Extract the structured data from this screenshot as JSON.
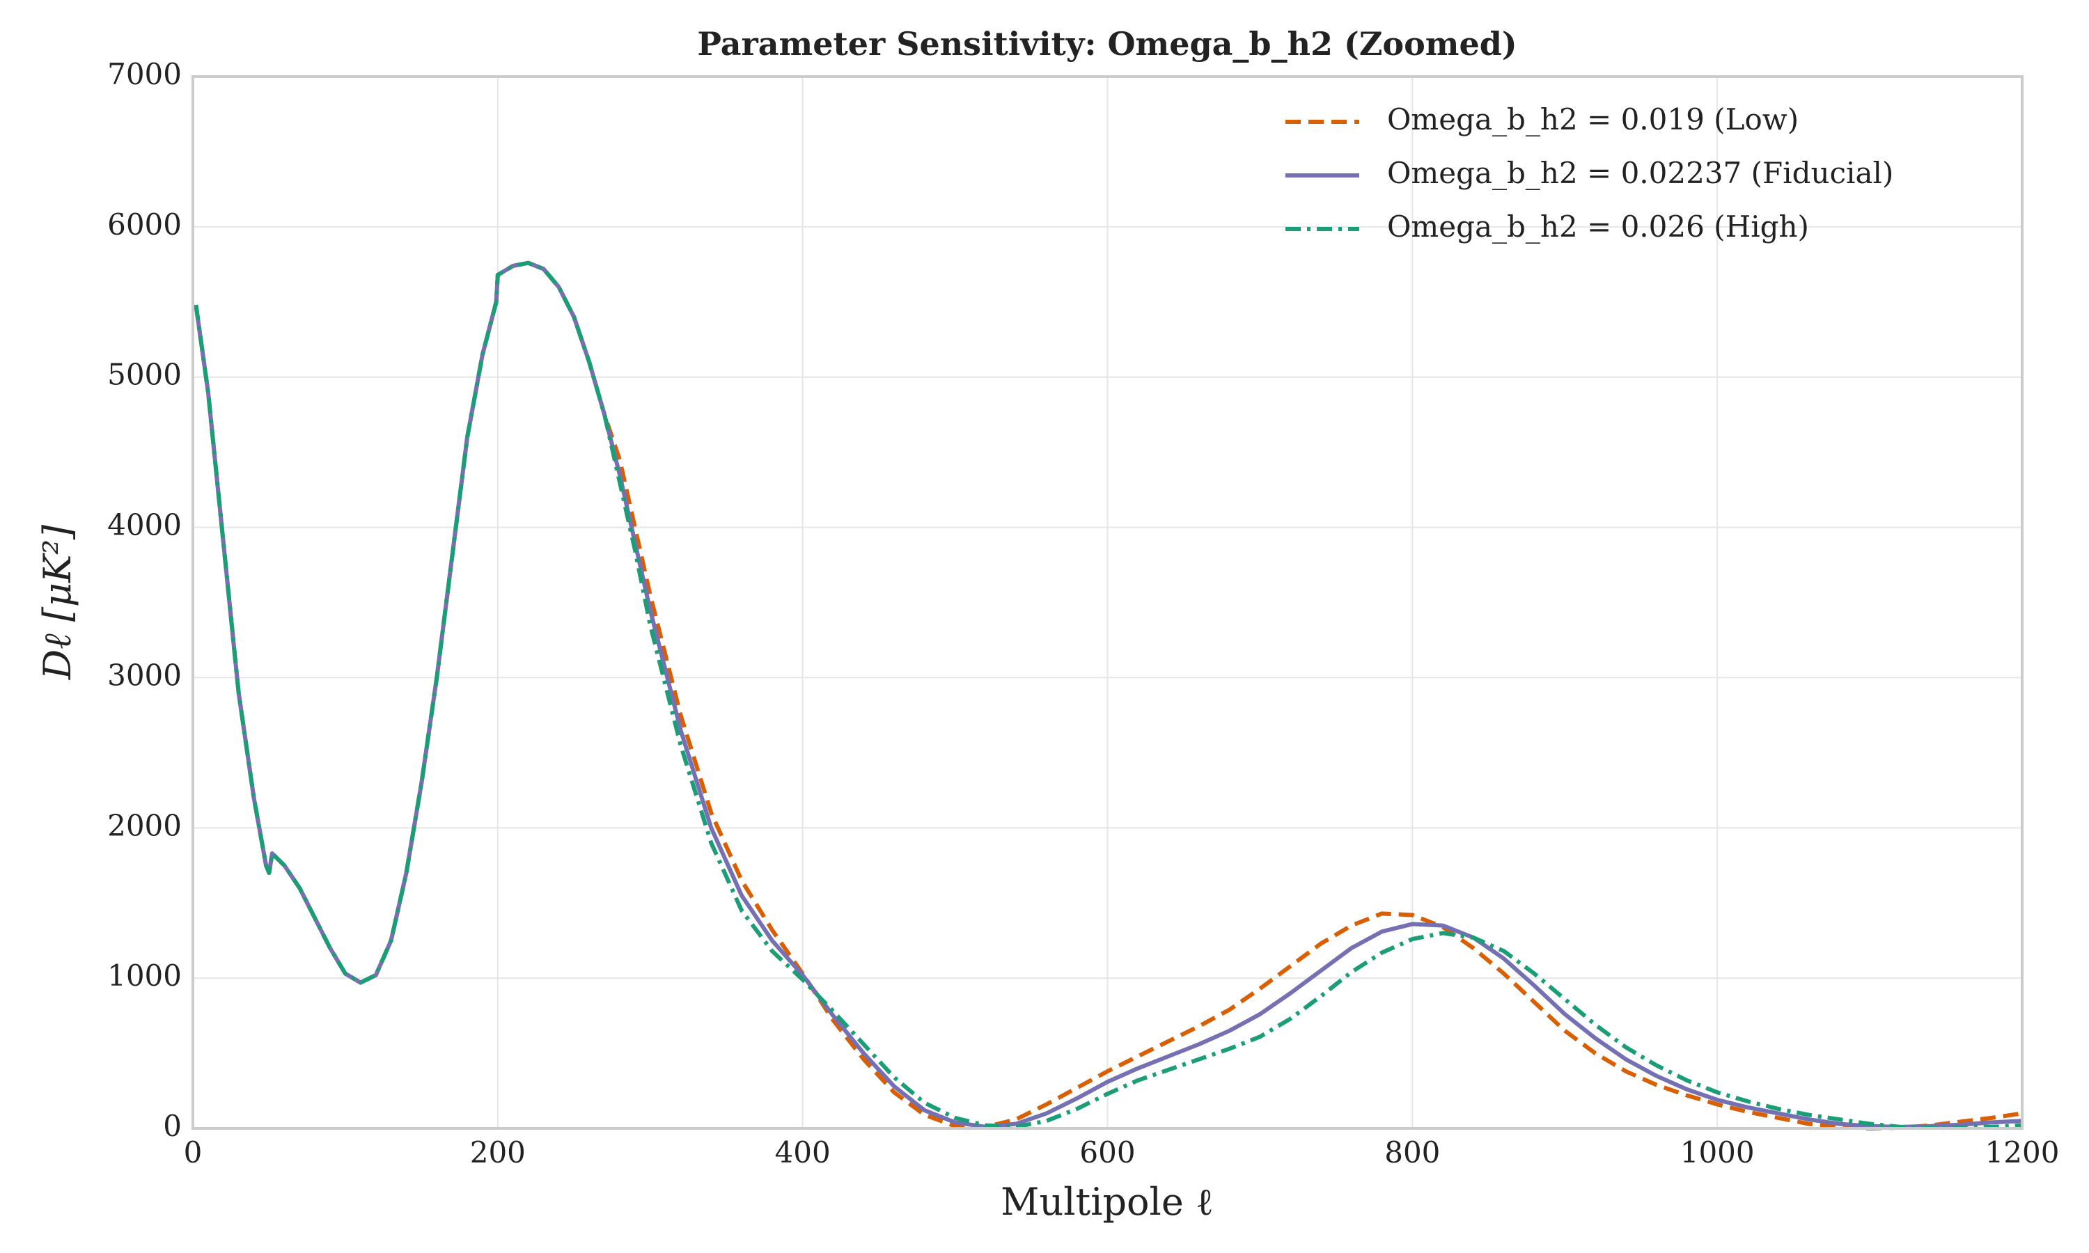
{
  "chart_data": {
    "type": "line",
    "title": "Parameter Sensitivity: Omega_b_h2 (Zoomed)",
    "xlabel": "Multipole ℓ",
    "ylabel": "Dℓ [μK²]",
    "x": [
      2,
      10,
      20,
      30,
      40,
      48,
      50,
      52,
      60,
      70,
      80,
      90,
      100,
      110,
      120,
      130,
      140,
      150,
      160,
      170,
      180,
      190,
      199,
      200,
      210,
      220,
      230,
      240,
      250,
      260,
      270,
      280,
      290,
      300,
      320,
      340,
      360,
      380,
      400,
      420,
      440,
      460,
      480,
      500,
      520,
      540,
      560,
      580,
      600,
      620,
      640,
      660,
      680,
      700,
      720,
      740,
      760,
      780,
      800,
      820,
      840,
      860,
      880,
      900,
      920,
      940,
      960,
      980,
      1000,
      1020,
      1040,
      1060,
      1080,
      1100,
      1120,
      1140,
      1160,
      1180,
      1200
    ],
    "series": [
      {
        "name": "Omega_b_h2 = 0.019 (Low)",
        "color": "#d95f02",
        "style": "dashed",
        "values": [
          5480,
          4900,
          3900,
          2900,
          2200,
          1750,
          1700,
          1830,
          1750,
          1600,
          1400,
          1200,
          1030,
          970,
          1020,
          1250,
          1700,
          2300,
          3000,
          3800,
          4600,
          5150,
          5500,
          5680,
          5740,
          5760,
          5720,
          5600,
          5400,
          5100,
          4750,
          4450,
          4000,
          3550,
          2750,
          2100,
          1650,
          1320,
          1030,
          720,
          460,
          240,
          90,
          15,
          10,
          60,
          160,
          270,
          380,
          480,
          580,
          680,
          790,
          930,
          1080,
          1230,
          1350,
          1430,
          1420,
          1340,
          1200,
          1030,
          840,
          650,
          500,
          380,
          290,
          220,
          160,
          110,
          70,
          30,
          10,
          0,
          5,
          20,
          45,
          70,
          100
        ]
      },
      {
        "name": "Omega_b_h2 = 0.02237 (Fiducial)",
        "color": "#7570b3",
        "style": "solid",
        "values": [
          5480,
          4900,
          3900,
          2900,
          2200,
          1750,
          1700,
          1830,
          1750,
          1600,
          1400,
          1200,
          1030,
          970,
          1020,
          1250,
          1700,
          2300,
          3000,
          3800,
          4600,
          5150,
          5500,
          5680,
          5740,
          5760,
          5720,
          5600,
          5400,
          5100,
          4750,
          4350,
          3900,
          3450,
          2650,
          2000,
          1550,
          1250,
          1020,
          750,
          500,
          280,
          120,
          40,
          10,
          30,
          100,
          200,
          310,
          400,
          480,
          560,
          650,
          760,
          900,
          1050,
          1200,
          1310,
          1360,
          1350,
          1270,
          1130,
          950,
          760,
          600,
          460,
          350,
          260,
          190,
          140,
          100,
          60,
          30,
          15,
          10,
          15,
          25,
          40,
          50
        ]
      },
      {
        "name": "Omega_b_h2 = 0.026 (High)",
        "color": "#1b9e77",
        "style": "dashdot",
        "values": [
          5480,
          4900,
          3900,
          2900,
          2200,
          1750,
          1700,
          1830,
          1750,
          1600,
          1400,
          1200,
          1030,
          970,
          1020,
          1250,
          1700,
          2300,
          3000,
          3800,
          4600,
          5150,
          5500,
          5680,
          5740,
          5760,
          5720,
          5600,
          5400,
          5100,
          4750,
          4300,
          3850,
          3350,
          2550,
          1900,
          1450,
          1180,
          990,
          780,
          560,
          340,
          170,
          70,
          20,
          10,
          50,
          130,
          230,
          320,
          390,
          460,
          530,
          610,
          730,
          880,
          1040,
          1170,
          1260,
          1300,
          1270,
          1180,
          1030,
          860,
          690,
          540,
          420,
          320,
          240,
          180,
          130,
          90,
          60,
          30,
          10,
          5,
          5,
          10,
          20
        ]
      }
    ],
    "xlim": [
      0,
      1200
    ],
    "xticks": [
      0,
      200,
      400,
      600,
      800,
      1000,
      1200
    ],
    "ylim": [
      0,
      7000
    ],
    "yticks": [
      0,
      1000,
      2000,
      3000,
      4000,
      5000,
      6000,
      7000
    ],
    "grid": true,
    "legend": "upper right"
  }
}
